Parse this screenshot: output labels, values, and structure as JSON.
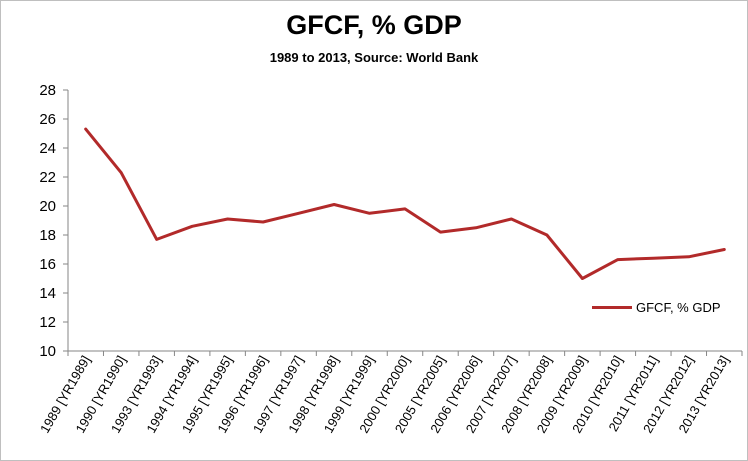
{
  "chart_data": {
    "type": "line",
    "title": "GFCF, % GDP",
    "subtitle": "1989 to 2013, Source: World Bank",
    "xlabel": "",
    "ylabel": "",
    "ylim": [
      10,
      28
    ],
    "yticks": [
      10,
      12,
      14,
      16,
      18,
      20,
      22,
      24,
      26,
      28
    ],
    "grid": false,
    "legend": "right",
    "categories": [
      "1989 [YR1989]",
      "1990 [YR1990]",
      "1993 [YR1993]",
      "1994 [YR1994]",
      "1995 [YR1995]",
      "1996 [YR1996]",
      "1997 [YR1997]",
      "1998 [YR1998]",
      "1999 [YR1999]",
      "2000 [YR2000]",
      "2005 [YR2005]",
      "2006 [YR2006]",
      "2007 [YR2007]",
      "2008 [YR2008]",
      "2009 [YR2009]",
      "2010 [YR2010]",
      "2011 [YR2011]",
      "2012 [YR2012]",
      "2013 [YR2013]"
    ],
    "series": [
      {
        "name": "GFCF, % GDP",
        "color": "#b22a2a",
        "values": [
          25.3,
          22.3,
          17.7,
          18.6,
          19.1,
          18.9,
          19.5,
          20.1,
          19.5,
          19.8,
          18.2,
          18.5,
          19.1,
          18.0,
          15.0,
          16.3,
          16.4,
          16.5,
          17.0
        ]
      }
    ]
  }
}
